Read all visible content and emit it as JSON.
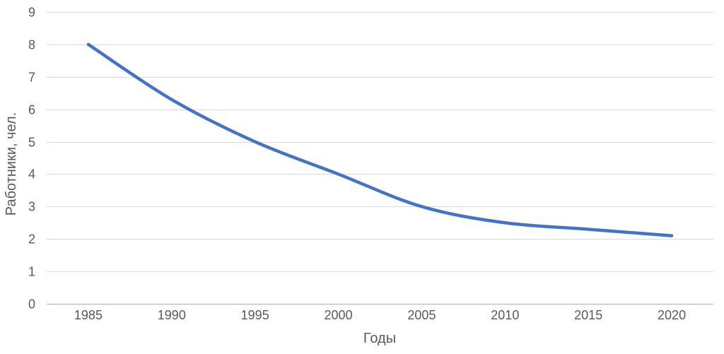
{
  "chart_data": {
    "type": "line",
    "title": "",
    "xlabel": "Годы",
    "ylabel": "Работники, чел.",
    "categories": [
      "1985",
      "1990",
      "1995",
      "2000",
      "2005",
      "2010",
      "2015",
      "2020"
    ],
    "values": [
      8,
      6.3,
      5,
      4,
      3,
      2.5,
      2.3,
      2.1
    ],
    "ylim": [
      0,
      9
    ],
    "ytick_step": 1,
    "grid": true,
    "legend": false,
    "smooth": true,
    "line_color": "#4472C4"
  },
  "style_colors": {
    "text": "#595959",
    "gridline": "#D9D9D9",
    "axis_line": "#BFBFBF",
    "background": "#FFFFFF"
  }
}
